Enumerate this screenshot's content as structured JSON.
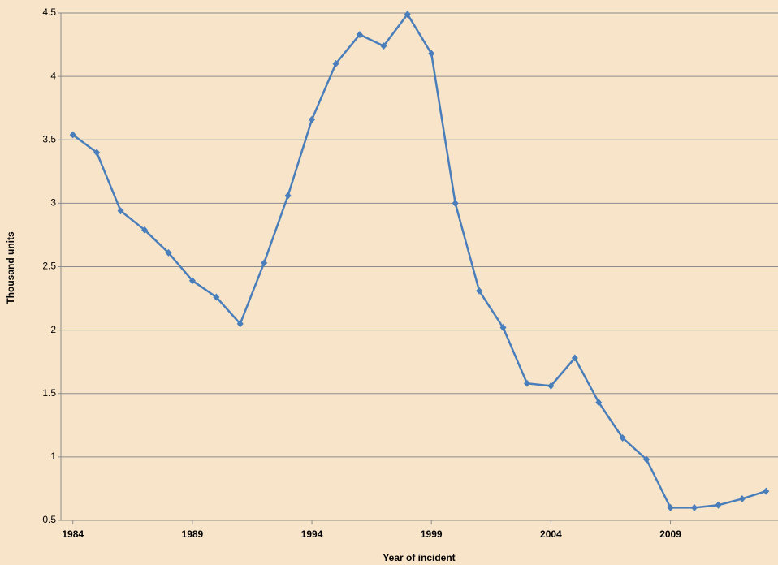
{
  "chart_data": {
    "type": "line",
    "x_label": "Year of incident",
    "y_label": "Thousand units",
    "x": [
      1984,
      1985,
      1986,
      1987,
      1988,
      1989,
      1990,
      1991,
      1992,
      1993,
      1994,
      1995,
      1996,
      1997,
      1998,
      1999,
      2000,
      2001,
      2002,
      2003,
      2004,
      2005,
      2006,
      2007,
      2008,
      2009,
      2010,
      2011,
      2012,
      2013
    ],
    "series": [
      {
        "color": "#4a7ebb",
        "values": [
          3.54,
          3.4,
          2.94,
          2.79,
          2.61,
          2.39,
          2.26,
          2.05,
          2.53,
          3.06,
          3.66,
          4.1,
          4.33,
          4.24,
          4.49,
          4.18,
          3.0,
          2.31,
          2.02,
          1.58,
          1.56,
          1.78,
          1.43,
          1.15,
          0.98,
          0.6,
          0.6,
          0.62,
          0.67,
          0.73
        ]
      }
    ],
    "xlim": [
      1983.5,
      2013.5
    ],
    "xticks": [
      1984,
      1989,
      1994,
      1999,
      2004,
      2009
    ],
    "ylim": [
      0.5,
      4.5
    ],
    "yticks": [
      0.5,
      1,
      1.5,
      2,
      2.5,
      3,
      3.5,
      4,
      4.5
    ],
    "grid": true
  }
}
